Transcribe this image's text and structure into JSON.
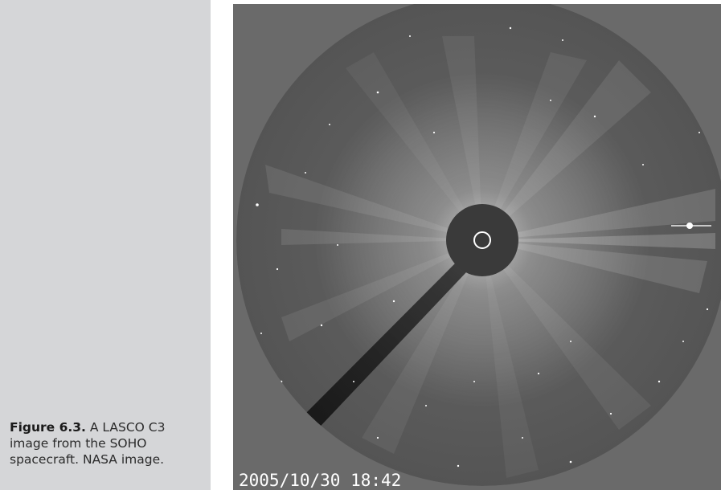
{
  "caption": {
    "label": "Figure 6.3.",
    "text": " A LASCO C3 image from the SOHO spacecraft. NASA image."
  },
  "image": {
    "subject": "coronagraph-image",
    "timestamp": "2005/10/30 18:42",
    "colors": {
      "background": "#6a6a6a",
      "field": "#585858",
      "occulter": "#3a3a3a",
      "sun_outline": "#ffffff",
      "streak": "#1c1c1c"
    }
  }
}
